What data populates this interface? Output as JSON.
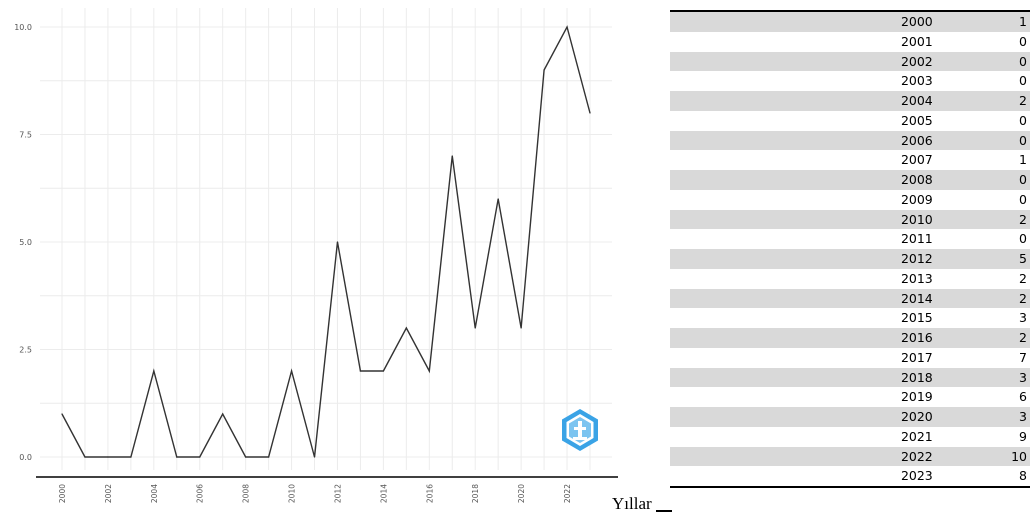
{
  "chart_data": {
    "type": "line",
    "x": [
      2000,
      2001,
      2002,
      2003,
      2004,
      2005,
      2006,
      2007,
      2008,
      2009,
      2010,
      2011,
      2012,
      2013,
      2014,
      2015,
      2016,
      2017,
      2018,
      2019,
      2020,
      2021,
      2022,
      2023
    ],
    "series": [
      {
        "values": [
          1,
          0,
          0,
          0,
          2,
          0,
          0,
          1,
          0,
          0,
          2,
          0,
          5,
          2,
          2,
          3,
          2,
          7,
          3,
          6,
          3,
          9,
          10,
          8
        ]
      }
    ],
    "xticks": [
      "2000",
      "2002",
      "2004",
      "2006",
      "2008",
      "2010",
      "2012",
      "2014",
      "2016",
      "2018",
      "2020",
      "2022"
    ],
    "yticks": [
      "0.0",
      "2.5",
      "5.0",
      "7.5",
      "10.0"
    ],
    "ylim": [
      0,
      10
    ],
    "xlim": [
      2000,
      2023
    ],
    "grid": true,
    "line_color": "#333333"
  },
  "xlabel_text": "Yıllar",
  "table": {
    "rows": [
      {
        "year": "2000",
        "count": "1"
      },
      {
        "year": "2001",
        "count": "0"
      },
      {
        "year": "2002",
        "count": "0"
      },
      {
        "year": "2003",
        "count": "0"
      },
      {
        "year": "2004",
        "count": "2"
      },
      {
        "year": "2005",
        "count": "0"
      },
      {
        "year": "2006",
        "count": "0"
      },
      {
        "year": "2007",
        "count": "1"
      },
      {
        "year": "2008",
        "count": "0"
      },
      {
        "year": "2009",
        "count": "0"
      },
      {
        "year": "2010",
        "count": "2"
      },
      {
        "year": "2011",
        "count": "0"
      },
      {
        "year": "2012",
        "count": "5"
      },
      {
        "year": "2013",
        "count": "2"
      },
      {
        "year": "2014",
        "count": "2"
      },
      {
        "year": "2015",
        "count": "3"
      },
      {
        "year": "2016",
        "count": "2"
      },
      {
        "year": "2017",
        "count": "7"
      },
      {
        "year": "2018",
        "count": "3"
      },
      {
        "year": "2019",
        "count": "6"
      },
      {
        "year": "2020",
        "count": "3"
      },
      {
        "year": "2021",
        "count": "9"
      },
      {
        "year": "2022",
        "count": "10"
      },
      {
        "year": "2023",
        "count": "8"
      }
    ]
  },
  "logo": {
    "icon": "institution-hexagon-logo-icon",
    "color": "#3aa3e6"
  }
}
